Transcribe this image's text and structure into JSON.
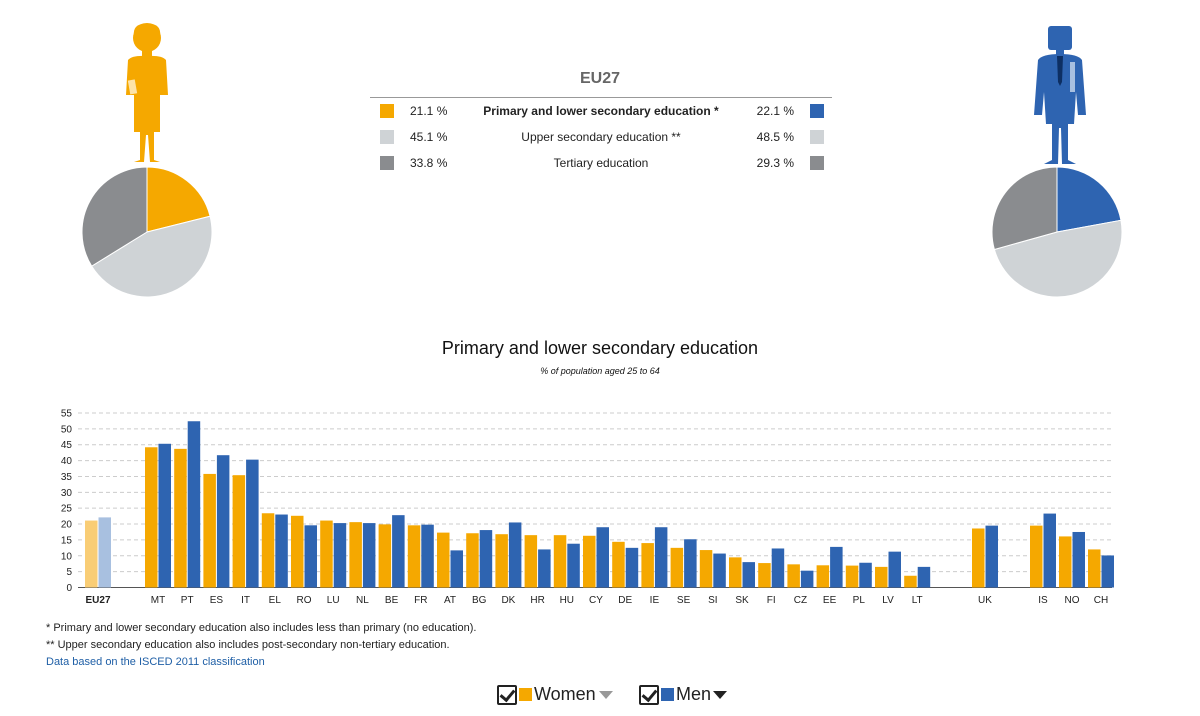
{
  "colors": {
    "women": "#f5a800",
    "men": "#2e64b1",
    "women_eu": "#f9cd75",
    "men_eu": "#a8c0e0",
    "light_gray": "#cfd3d6",
    "dark_gray": "#8a8c8f",
    "grid": "#cccccc"
  },
  "summary": {
    "title": "EU27",
    "rows": [
      {
        "women": "21.1 %",
        "label": "Primary and lower secondary education *",
        "men": "22.1 %"
      },
      {
        "women": "45.1 %",
        "label": "Upper secondary education **",
        "men": "48.5 %"
      },
      {
        "women": "33.8 %",
        "label": "Tertiary education",
        "men": "29.3 %"
      }
    ]
  },
  "pies": {
    "women": [
      21.1,
      45.1,
      33.8
    ],
    "men": [
      22.1,
      48.5,
      29.3
    ]
  },
  "chart_data": {
    "type": "bar",
    "title": "Primary and lower secondary education",
    "subtitle": "% of population aged 25 to 64",
    "ylim": [
      0,
      55
    ],
    "yticks": [
      0,
      5,
      10,
      15,
      20,
      25,
      30,
      35,
      40,
      45,
      50,
      55
    ],
    "grid": true,
    "categories": [
      "EU27",
      "MT",
      "PT",
      "ES",
      "IT",
      "EL",
      "RO",
      "LU",
      "NL",
      "BE",
      "FR",
      "AT",
      "BG",
      "DK",
      "HR",
      "HU",
      "CY",
      "DE",
      "IE",
      "SE",
      "SI",
      "SK",
      "FI",
      "CZ",
      "EE",
      "PL",
      "LV",
      "LT",
      "UK",
      "IS",
      "NO",
      "CH"
    ],
    "series": [
      {
        "name": "Women",
        "values": [
          21.1,
          44.2,
          43.7,
          35.8,
          35.4,
          23.4,
          22.6,
          21.1,
          20.6,
          19.9,
          19.6,
          17.3,
          17.1,
          16.8,
          16.5,
          16.5,
          16.3,
          14.4,
          14.0,
          12.5,
          11.8,
          9.5,
          7.7,
          7.3,
          7.0,
          6.9,
          6.5,
          3.7,
          18.6,
          19.5,
          16.1,
          12.0
        ]
      },
      {
        "name": "Men",
        "values": [
          22.1,
          45.3,
          52.4,
          41.7,
          40.3,
          23.0,
          19.6,
          20.3,
          20.3,
          22.8,
          19.8,
          11.7,
          18.1,
          20.5,
          12.0,
          13.8,
          19.0,
          12.5,
          19.0,
          15.2,
          10.7,
          8.0,
          12.3,
          5.3,
          12.8,
          7.8,
          11.3,
          6.5,
          19.5,
          23.3,
          17.5,
          10.1
        ]
      }
    ]
  },
  "notes": {
    "primary": "* Primary and lower secondary education also includes less than primary (no education).",
    "upper": "** Upper secondary education also includes post-secondary non-tertiary education.",
    "link": "Data based on the ISCED 2011 classification"
  },
  "legend": {
    "women": "Women",
    "men": "Men"
  }
}
